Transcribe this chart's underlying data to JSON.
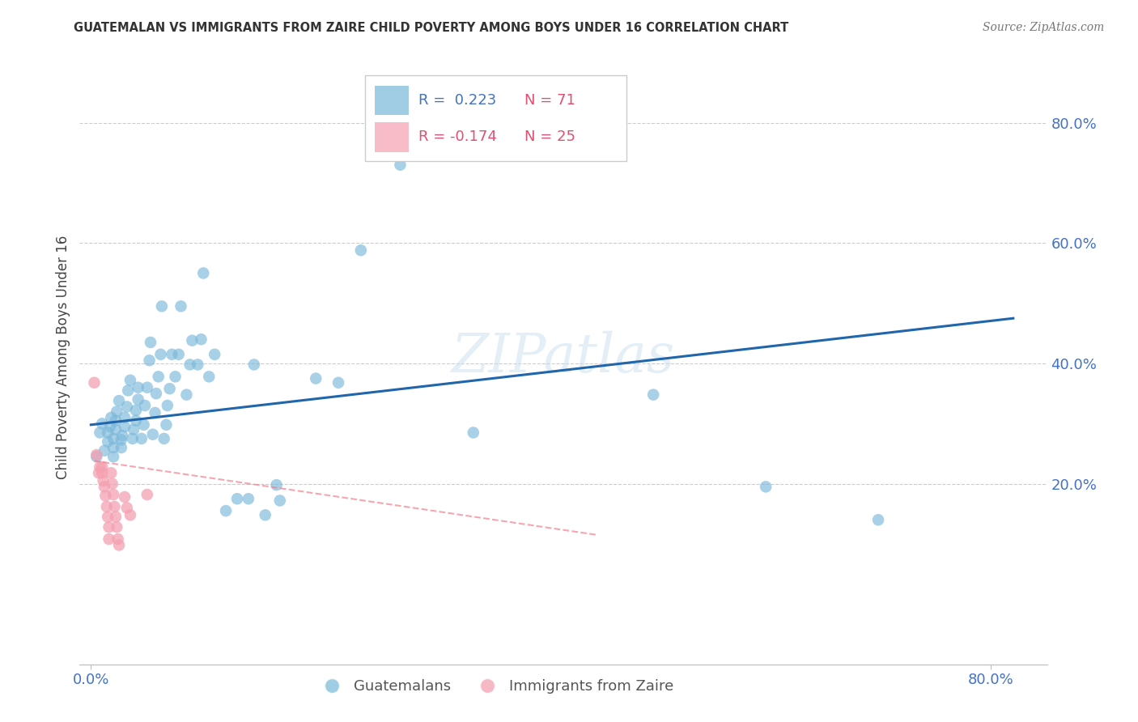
{
  "title": "GUATEMALAN VS IMMIGRANTS FROM ZAIRE CHILD POVERTY AMONG BOYS UNDER 16 CORRELATION CHART",
  "source": "Source: ZipAtlas.com",
  "xlim": [
    -0.01,
    0.85
  ],
  "ylim": [
    -0.1,
    0.92
  ],
  "ylabel": "Child Poverty Among Boys Under 16",
  "watermark": "ZIPatlas",
  "blue_color": "#7ab8d9",
  "pink_color": "#f4a0b0",
  "blue_line_color": "#2166ac",
  "pink_line_color": "#f08090",
  "guatemalan_scatter": [
    [
      0.005,
      0.245
    ],
    [
      0.008,
      0.285
    ],
    [
      0.01,
      0.3
    ],
    [
      0.012,
      0.255
    ],
    [
      0.015,
      0.27
    ],
    [
      0.015,
      0.285
    ],
    [
      0.017,
      0.295
    ],
    [
      0.018,
      0.31
    ],
    [
      0.02,
      0.245
    ],
    [
      0.02,
      0.26
    ],
    [
      0.02,
      0.275
    ],
    [
      0.022,
      0.29
    ],
    [
      0.022,
      0.305
    ],
    [
      0.023,
      0.32
    ],
    [
      0.025,
      0.338
    ],
    [
      0.027,
      0.26
    ],
    [
      0.027,
      0.273
    ],
    [
      0.028,
      0.28
    ],
    [
      0.03,
      0.295
    ],
    [
      0.03,
      0.31
    ],
    [
      0.032,
      0.328
    ],
    [
      0.033,
      0.355
    ],
    [
      0.035,
      0.372
    ],
    [
      0.037,
      0.275
    ],
    [
      0.038,
      0.29
    ],
    [
      0.04,
      0.305
    ],
    [
      0.04,
      0.322
    ],
    [
      0.042,
      0.34
    ],
    [
      0.042,
      0.36
    ],
    [
      0.045,
      0.275
    ],
    [
      0.047,
      0.298
    ],
    [
      0.048,
      0.33
    ],
    [
      0.05,
      0.36
    ],
    [
      0.052,
      0.405
    ],
    [
      0.053,
      0.435
    ],
    [
      0.055,
      0.282
    ],
    [
      0.057,
      0.318
    ],
    [
      0.058,
      0.35
    ],
    [
      0.06,
      0.378
    ],
    [
      0.062,
      0.415
    ],
    [
      0.063,
      0.495
    ],
    [
      0.065,
      0.275
    ],
    [
      0.067,
      0.298
    ],
    [
      0.068,
      0.33
    ],
    [
      0.07,
      0.358
    ],
    [
      0.072,
      0.415
    ],
    [
      0.075,
      0.378
    ],
    [
      0.078,
      0.415
    ],
    [
      0.08,
      0.495
    ],
    [
      0.085,
      0.348
    ],
    [
      0.088,
      0.398
    ],
    [
      0.09,
      0.438
    ],
    [
      0.095,
      0.398
    ],
    [
      0.098,
      0.44
    ],
    [
      0.1,
      0.55
    ],
    [
      0.105,
      0.378
    ],
    [
      0.11,
      0.415
    ],
    [
      0.12,
      0.155
    ],
    [
      0.13,
      0.175
    ],
    [
      0.14,
      0.175
    ],
    [
      0.145,
      0.398
    ],
    [
      0.155,
      0.148
    ],
    [
      0.165,
      0.198
    ],
    [
      0.168,
      0.172
    ],
    [
      0.2,
      0.375
    ],
    [
      0.22,
      0.368
    ],
    [
      0.24,
      0.588
    ],
    [
      0.275,
      0.73
    ],
    [
      0.34,
      0.285
    ],
    [
      0.5,
      0.348
    ],
    [
      0.6,
      0.195
    ],
    [
      0.7,
      0.14
    ]
  ],
  "zaire_scatter": [
    [
      0.003,
      0.368
    ],
    [
      0.005,
      0.248
    ],
    [
      0.007,
      0.218
    ],
    [
      0.008,
      0.228
    ],
    [
      0.01,
      0.228
    ],
    [
      0.01,
      0.218
    ],
    [
      0.011,
      0.205
    ],
    [
      0.012,
      0.195
    ],
    [
      0.013,
      0.18
    ],
    [
      0.014,
      0.162
    ],
    [
      0.015,
      0.145
    ],
    [
      0.016,
      0.128
    ],
    [
      0.016,
      0.108
    ],
    [
      0.018,
      0.218
    ],
    [
      0.019,
      0.2
    ],
    [
      0.02,
      0.182
    ],
    [
      0.021,
      0.162
    ],
    [
      0.022,
      0.145
    ],
    [
      0.023,
      0.128
    ],
    [
      0.024,
      0.108
    ],
    [
      0.025,
      0.098
    ],
    [
      0.03,
      0.178
    ],
    [
      0.032,
      0.16
    ],
    [
      0.035,
      0.148
    ],
    [
      0.05,
      0.182
    ]
  ],
  "blue_line_x": [
    0.0,
    0.82
  ],
  "blue_line_y": [
    0.298,
    0.475
  ],
  "pink_line_x": [
    0.003,
    0.45
  ],
  "pink_line_y": [
    0.238,
    0.115
  ],
  "xtick_positions": [
    0.0,
    0.8
  ],
  "xtick_labels": [
    "0.0%",
    "80.0%"
  ],
  "ytick_positions_right": [
    0.8,
    0.6,
    0.4,
    0.2
  ],
  "ytick_labels_right": [
    "80.0%",
    "60.0%",
    "40.0%",
    "20.0%"
  ]
}
